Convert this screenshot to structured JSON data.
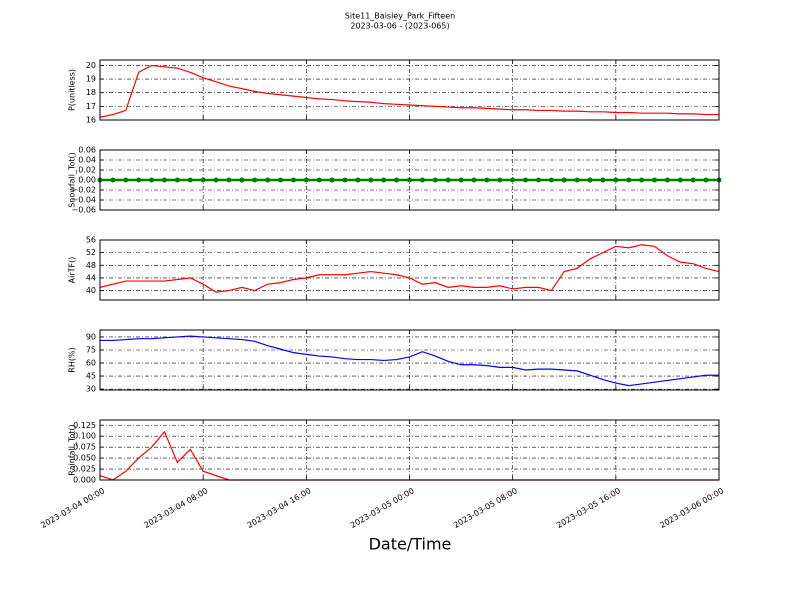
{
  "chart_data": [
    {
      "type": "line",
      "title": "Site11_Baisley_Park_Fifteen",
      "subtitle": "2023-03-06 - (2023-065)",
      "ylabel": "P(unitless)",
      "color": "#ff0000",
      "grid": true,
      "show_xtick_labels": false,
      "x": [
        "2023-03-04 00:00",
        "2023-03-04 01:00",
        "2023-03-04 02:00",
        "2023-03-04 03:00",
        "2023-03-04 04:00",
        "2023-03-04 05:00",
        "2023-03-04 06:00",
        "2023-03-04 07:00",
        "2023-03-04 08:00",
        "2023-03-04 09:00",
        "2023-03-04 10:00",
        "2023-03-04 11:00",
        "2023-03-04 12:00",
        "2023-03-04 13:00",
        "2023-03-04 14:00",
        "2023-03-04 15:00",
        "2023-03-04 16:00",
        "2023-03-04 17:00",
        "2023-03-04 18:00",
        "2023-03-04 19:00",
        "2023-03-04 20:00",
        "2023-03-04 21:00",
        "2023-03-04 22:00",
        "2023-03-04 23:00",
        "2023-03-05 00:00",
        "2023-03-05 01:00",
        "2023-03-05 02:00",
        "2023-03-05 03:00",
        "2023-03-05 04:00",
        "2023-03-05 05:00",
        "2023-03-05 06:00",
        "2023-03-05 07:00",
        "2023-03-05 08:00",
        "2023-03-05 09:00",
        "2023-03-05 10:00",
        "2023-03-05 11:00",
        "2023-03-05 12:00",
        "2023-03-05 13:00",
        "2023-03-05 14:00",
        "2023-03-05 15:00",
        "2023-03-05 16:00",
        "2023-03-05 17:00",
        "2023-03-05 18:00",
        "2023-03-05 19:00",
        "2023-03-05 20:00",
        "2023-03-05 21:00",
        "2023-03-05 22:00",
        "2023-03-05 23:00",
        "2023-03-06 00:00"
      ],
      "values": [
        16.2,
        16.4,
        16.7,
        19.5,
        20.0,
        19.9,
        19.8,
        19.5,
        19.1,
        18.8,
        18.5,
        18.3,
        18.1,
        17.95,
        17.85,
        17.75,
        17.65,
        17.55,
        17.5,
        17.4,
        17.35,
        17.3,
        17.2,
        17.15,
        17.1,
        17.05,
        17.0,
        16.95,
        16.9,
        16.9,
        16.85,
        16.8,
        16.75,
        16.75,
        16.7,
        16.7,
        16.65,
        16.65,
        16.6,
        16.6,
        16.55,
        16.55,
        16.5,
        16.5,
        16.5,
        16.45,
        16.45,
        16.4,
        16.4
      ],
      "xlim": [
        "2023-03-04 00:00",
        "2023-03-06 00:00"
      ],
      "xticks": [
        "2023-03-04 00:00",
        "2023-03-04 08:00",
        "2023-03-04 16:00",
        "2023-03-05 00:00",
        "2023-03-05 08:00",
        "2023-03-05 16:00",
        "2023-03-06 00:00"
      ],
      "ylim": [
        16,
        20.4
      ],
      "yticks": [
        16,
        17,
        18,
        19,
        20
      ]
    },
    {
      "type": "line",
      "ylabel": "Snowfall_Tot()",
      "color": "#008000",
      "marker": true,
      "grid": true,
      "show_xtick_labels": false,
      "x": [
        "2023-03-04 00:00",
        "2023-03-04 01:00",
        "2023-03-04 02:00",
        "2023-03-04 03:00",
        "2023-03-04 04:00",
        "2023-03-04 05:00",
        "2023-03-04 06:00",
        "2023-03-04 07:00",
        "2023-03-04 08:00",
        "2023-03-04 09:00",
        "2023-03-04 10:00",
        "2023-03-04 11:00",
        "2023-03-04 12:00",
        "2023-03-04 13:00",
        "2023-03-04 14:00",
        "2023-03-04 15:00",
        "2023-03-04 16:00",
        "2023-03-04 17:00",
        "2023-03-04 18:00",
        "2023-03-04 19:00",
        "2023-03-04 20:00",
        "2023-03-04 21:00",
        "2023-03-04 22:00",
        "2023-03-04 23:00",
        "2023-03-05 00:00",
        "2023-03-05 01:00",
        "2023-03-05 02:00",
        "2023-03-05 03:00",
        "2023-03-05 04:00",
        "2023-03-05 05:00",
        "2023-03-05 06:00",
        "2023-03-05 07:00",
        "2023-03-05 08:00",
        "2023-03-05 09:00",
        "2023-03-05 10:00",
        "2023-03-05 11:00",
        "2023-03-05 12:00",
        "2023-03-05 13:00",
        "2023-03-05 14:00",
        "2023-03-05 15:00",
        "2023-03-05 16:00",
        "2023-03-05 17:00",
        "2023-03-05 18:00",
        "2023-03-05 19:00",
        "2023-03-05 20:00",
        "2023-03-05 21:00",
        "2023-03-05 22:00",
        "2023-03-05 23:00",
        "2023-03-06 00:00"
      ],
      "values": [
        0,
        0,
        0,
        0,
        0,
        0,
        0,
        0,
        0,
        0,
        0,
        0,
        0,
        0,
        0,
        0,
        0,
        0,
        0,
        0,
        0,
        0,
        0,
        0,
        0,
        0,
        0,
        0,
        0,
        0,
        0,
        0,
        0,
        0,
        0,
        0,
        0,
        0,
        0,
        0,
        0,
        0,
        0,
        0,
        0,
        0,
        0,
        0,
        0
      ],
      "xlim": [
        "2023-03-04 00:00",
        "2023-03-06 00:00"
      ],
      "xticks": [
        "2023-03-04 00:00",
        "2023-03-04 08:00",
        "2023-03-04 16:00",
        "2023-03-05 00:00",
        "2023-03-05 08:00",
        "2023-03-05 16:00",
        "2023-03-06 00:00"
      ],
      "ylim": [
        -0.06,
        0.06
      ],
      "yticks": [
        {
          "value": -0.06,
          "label": "−0.06"
        },
        {
          "value": -0.04,
          "label": "−0.04"
        },
        {
          "value": -0.02,
          "label": "−0.02"
        },
        {
          "value": 0,
          "label": "0.00"
        },
        0.02,
        0.04,
        0.06
      ]
    },
    {
      "type": "line",
      "ylabel": "AirTF()",
      "color": "#ff0000",
      "grid": true,
      "show_xtick_labels": false,
      "x": [
        "2023-03-04 00:00",
        "2023-03-04 01:00",
        "2023-03-04 02:00",
        "2023-03-04 03:00",
        "2023-03-04 04:00",
        "2023-03-04 05:00",
        "2023-03-04 06:00",
        "2023-03-04 07:00",
        "2023-03-04 08:00",
        "2023-03-04 09:00",
        "2023-03-04 10:00",
        "2023-03-04 11:00",
        "2023-03-04 12:00",
        "2023-03-04 13:00",
        "2023-03-04 14:00",
        "2023-03-04 15:00",
        "2023-03-04 16:00",
        "2023-03-04 17:00",
        "2023-03-04 18:00",
        "2023-03-04 19:00",
        "2023-03-04 20:00",
        "2023-03-04 21:00",
        "2023-03-04 22:00",
        "2023-03-04 23:00",
        "2023-03-05 00:00",
        "2023-03-05 01:00",
        "2023-03-05 02:00",
        "2023-03-05 03:00",
        "2023-03-05 04:00",
        "2023-03-05 05:00",
        "2023-03-05 06:00",
        "2023-03-05 07:00",
        "2023-03-05 08:00",
        "2023-03-05 09:00",
        "2023-03-05 10:00",
        "2023-03-05 11:00",
        "2023-03-05 12:00",
        "2023-03-05 13:00",
        "2023-03-05 14:00",
        "2023-03-05 15:00",
        "2023-03-05 16:00",
        "2023-03-05 17:00",
        "2023-03-05 18:00",
        "2023-03-05 19:00",
        "2023-03-05 20:00",
        "2023-03-05 21:00",
        "2023-03-05 22:00",
        "2023-03-05 23:00",
        "2023-03-06 00:00"
      ],
      "values": [
        41,
        42,
        43,
        43,
        43,
        43,
        43.5,
        44,
        42,
        39.5,
        40,
        41,
        40,
        42,
        42.5,
        43.5,
        44,
        45,
        45,
        45,
        45.5,
        46,
        45.5,
        45,
        44,
        42,
        42.5,
        41,
        41.5,
        41,
        41,
        41.5,
        40.5,
        41,
        41,
        40,
        46,
        47,
        50,
        52,
        54,
        53.5,
        54.5,
        54,
        51,
        49,
        48.5,
        47,
        46
      ],
      "xlim": [
        "2023-03-04 00:00",
        "2023-03-06 00:00"
      ],
      "xticks": [
        "2023-03-04 00:00",
        "2023-03-04 08:00",
        "2023-03-04 16:00",
        "2023-03-05 00:00",
        "2023-03-05 08:00",
        "2023-03-05 16:00",
        "2023-03-06 00:00"
      ],
      "ylim": [
        37,
        56
      ],
      "yticks": [
        40,
        44,
        48,
        52,
        56
      ]
    },
    {
      "type": "line",
      "ylabel": "RH(%)",
      "color": "#0000ff",
      "grid": true,
      "show_xtick_labels": false,
      "x": [
        "2023-03-04 00:00",
        "2023-03-04 01:00",
        "2023-03-04 02:00",
        "2023-03-04 03:00",
        "2023-03-04 04:00",
        "2023-03-04 05:00",
        "2023-03-04 06:00",
        "2023-03-04 07:00",
        "2023-03-04 08:00",
        "2023-03-04 09:00",
        "2023-03-04 10:00",
        "2023-03-04 11:00",
        "2023-03-04 12:00",
        "2023-03-04 13:00",
        "2023-03-04 14:00",
        "2023-03-04 15:00",
        "2023-03-04 16:00",
        "2023-03-04 17:00",
        "2023-03-04 18:00",
        "2023-03-04 19:00",
        "2023-03-04 20:00",
        "2023-03-04 21:00",
        "2023-03-04 22:00",
        "2023-03-04 23:00",
        "2023-03-05 00:00",
        "2023-03-05 01:00",
        "2023-03-05 02:00",
        "2023-03-05 03:00",
        "2023-03-05 04:00",
        "2023-03-05 05:00",
        "2023-03-05 06:00",
        "2023-03-05 07:00",
        "2023-03-05 08:00",
        "2023-03-05 09:00",
        "2023-03-05 10:00",
        "2023-03-05 11:00",
        "2023-03-05 12:00",
        "2023-03-05 13:00",
        "2023-03-05 14:00",
        "2023-03-05 15:00",
        "2023-03-05 16:00",
        "2023-03-05 17:00",
        "2023-03-05 18:00",
        "2023-03-05 19:00",
        "2023-03-05 20:00",
        "2023-03-05 21:00",
        "2023-03-05 22:00",
        "2023-03-05 23:00",
        "2023-03-06 00:00"
      ],
      "values": [
        86,
        86,
        87,
        88,
        88,
        89,
        90,
        91,
        90,
        89,
        88,
        87,
        85,
        80,
        76,
        72,
        70,
        68,
        67,
        65,
        64,
        64,
        63,
        64,
        67,
        73,
        68,
        62,
        58,
        58,
        57,
        55,
        55,
        52,
        53,
        53,
        52,
        51,
        46,
        41,
        37,
        34,
        36,
        38,
        40,
        42,
        44,
        46,
        46
      ],
      "xlim": [
        "2023-03-04 00:00",
        "2023-03-06 00:00"
      ],
      "xticks": [
        "2023-03-04 00:00",
        "2023-03-04 08:00",
        "2023-03-04 16:00",
        "2023-03-05 00:00",
        "2023-03-05 08:00",
        "2023-03-05 16:00",
        "2023-03-06 00:00"
      ],
      "ylim": [
        29,
        98
      ],
      "yticks": [
        30,
        45,
        60,
        75,
        90
      ]
    },
    {
      "type": "line",
      "ylabel": "Rainfall_Tot()",
      "xlabel": "Date/Time",
      "color": "#ff0000",
      "grid": true,
      "show_xtick_labels": true,
      "x": [
        "2023-03-04 00:00",
        "2023-03-04 01:00",
        "2023-03-04 02:00",
        "2023-03-04 03:00",
        "2023-03-04 04:00",
        "2023-03-04 05:00",
        "2023-03-04 06:00",
        "2023-03-04 07:00",
        "2023-03-04 08:00",
        "2023-03-04 09:00",
        "2023-03-04 10:00",
        "2023-03-04 11:00",
        "2023-03-04 12:00",
        "2023-03-04 13:00",
        "2023-03-04 14:00",
        "2023-03-04 15:00",
        "2023-03-04 16:00",
        "2023-03-04 17:00",
        "2023-03-04 18:00",
        "2023-03-04 19:00",
        "2023-03-04 20:00",
        "2023-03-04 21:00",
        "2023-03-04 22:00",
        "2023-03-04 23:00",
        "2023-03-05 00:00",
        "2023-03-05 01:00",
        "2023-03-05 02:00",
        "2023-03-05 03:00",
        "2023-03-05 04:00",
        "2023-03-05 05:00",
        "2023-03-05 06:00",
        "2023-03-05 07:00",
        "2023-03-05 08:00",
        "2023-03-05 09:00",
        "2023-03-05 10:00",
        "2023-03-05 11:00",
        "2023-03-05 12:00",
        "2023-03-05 13:00",
        "2023-03-05 14:00",
        "2023-03-05 15:00",
        "2023-03-05 16:00",
        "2023-03-05 17:00",
        "2023-03-05 18:00",
        "2023-03-05 19:00",
        "2023-03-05 20:00",
        "2023-03-05 21:00",
        "2023-03-05 22:00",
        "2023-03-05 23:00",
        "2023-03-06 00:00"
      ],
      "values": [
        0.01,
        0,
        0.02,
        0.05,
        0.075,
        0.11,
        0.04,
        0.07,
        0.02,
        0.01,
        0,
        0,
        0,
        0,
        0,
        0,
        0,
        0,
        0,
        0,
        0,
        0,
        0,
        0,
        0,
        0,
        0,
        0,
        0,
        0,
        0,
        0,
        0,
        0,
        0,
        0,
        0,
        0,
        0,
        0,
        0,
        0,
        0,
        0,
        0,
        0,
        0,
        0,
        0
      ],
      "xlim": [
        "2023-03-04 00:00",
        "2023-03-06 00:00"
      ],
      "xticks": [
        "2023-03-04 00:00",
        "2023-03-04 08:00",
        "2023-03-04 16:00",
        "2023-03-05 00:00",
        "2023-03-05 08:00",
        "2023-03-05 16:00",
        "2023-03-06 00:00"
      ],
      "ylim": [
        0,
        0.137
      ],
      "yticks": [
        {
          "value": 0,
          "label": "0.000"
        },
        {
          "value": 0.025,
          "label": "0.025"
        },
        {
          "value": 0.05,
          "label": "0.050"
        },
        {
          "value": 0.075,
          "label": "0.075"
        },
        {
          "value": 0.1,
          "label": "0.100"
        },
        {
          "value": 0.125,
          "label": "0.125"
        }
      ]
    }
  ]
}
